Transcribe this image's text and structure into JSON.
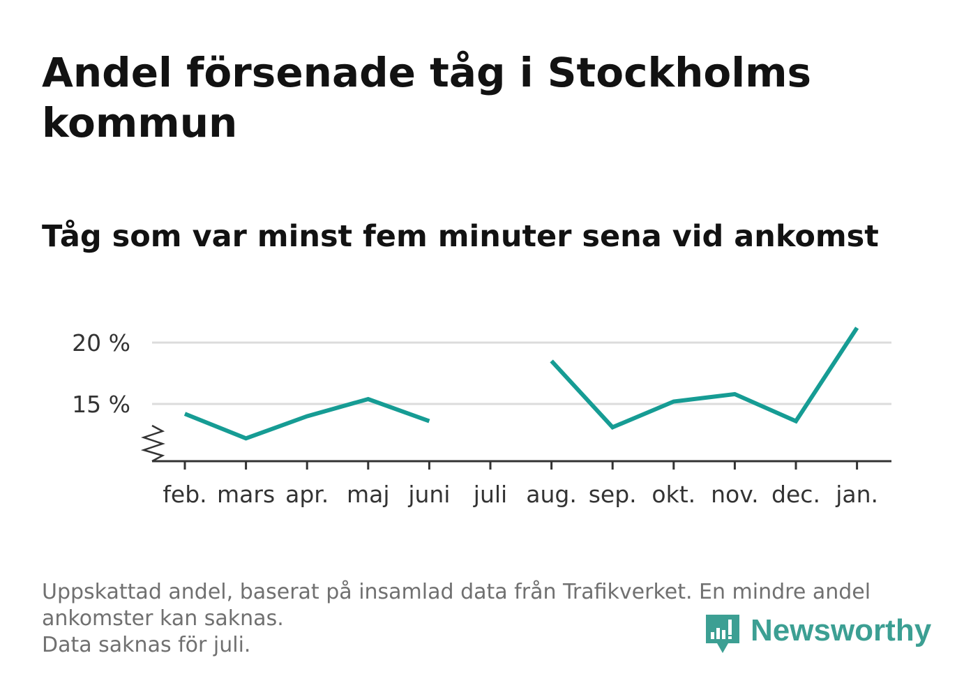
{
  "title": "Andel försenade tåg i Stockholms kommun",
  "subtitle": "Tåg som var minst fem minuter sena vid ankomst",
  "footnote": {
    "line1": "Uppskattad andel, baserat på insamlad data från Trafikverket. En mindre andel",
    "line2": "ankomster kan saknas.",
    "line3": "Data saknas för juli."
  },
  "logo": {
    "text": "Newsworthy",
    "icon": "newsworthy-bar-chart-icon"
  },
  "colors": {
    "line": "#169c94",
    "grid": "#dcdcdc",
    "axis": "#333333",
    "text": "#121212",
    "muted": "#707070",
    "brand": "#3c9f93"
  },
  "chart_data": {
    "type": "line",
    "categories": [
      "feb.",
      "mars",
      "apr.",
      "maj",
      "juni",
      "juli",
      "aug.",
      "sep.",
      "okt.",
      "nov.",
      "dec.",
      "jan."
    ],
    "series": [
      {
        "values": [
          14.2,
          12.2,
          14.0,
          15.4,
          13.6,
          null,
          18.5,
          13.1,
          15.2,
          15.8,
          13.6,
          21.2
        ]
      }
    ],
    "yticks": [
      {
        "value": 15,
        "label": "15 %"
      },
      {
        "value": 20,
        "label": "20 %"
      }
    ],
    "ylim": [
      10.5,
      21.8
    ],
    "y_axis_break": true,
    "grid": true,
    "xlabel": "",
    "ylabel": ""
  }
}
